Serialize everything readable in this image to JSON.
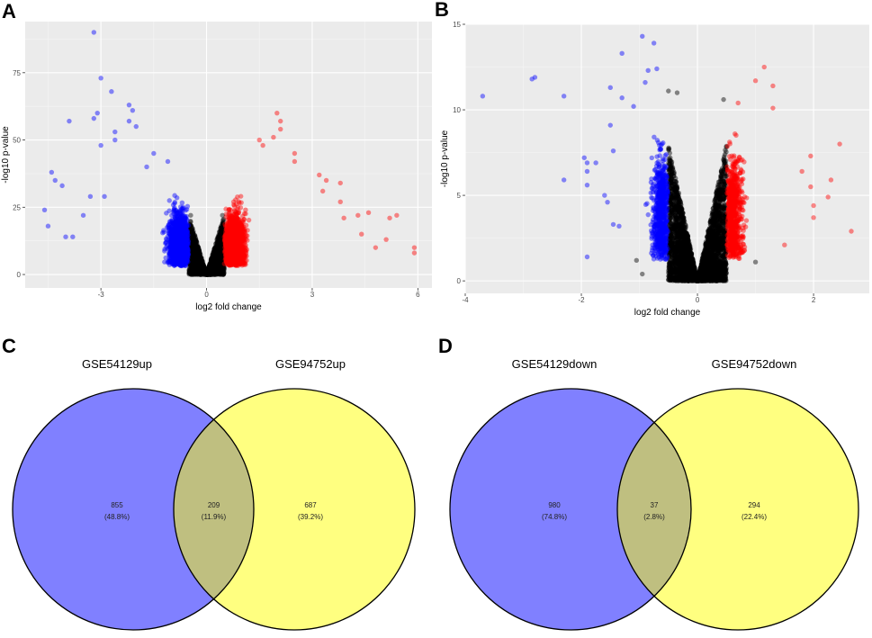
{
  "chart_data": [
    {
      "panel": "A",
      "type": "scatter",
      "xlabel": "log2 fold change",
      "ylabel": "-log10 p-value",
      "xlim": [
        -5.15,
        6.4
      ],
      "ylim": [
        -5,
        94
      ],
      "xticks": [
        -3,
        0,
        3,
        6
      ],
      "yticks": [
        0,
        25,
        50,
        75
      ],
      "grid": true,
      "background": "#ebebeb",
      "colors": {
        "down": "#0000ff",
        "not_significant": "#000000",
        "up": "#ff0000"
      },
      "fold_change_threshold": 0.5,
      "points_down": [
        [
          -3.2,
          90
        ],
        [
          -3.0,
          73
        ],
        [
          -2.7,
          68
        ],
        [
          -2.2,
          63
        ],
        [
          -2.1,
          61
        ],
        [
          -3.1,
          60
        ],
        [
          -3.2,
          58
        ],
        [
          -3.9,
          57
        ],
        [
          -2.2,
          57
        ],
        [
          -2.0,
          55
        ],
        [
          -2.6,
          53
        ],
        [
          -2.6,
          50
        ],
        [
          -3.0,
          48
        ],
        [
          -4.6,
          24
        ],
        [
          -4.4,
          38
        ],
        [
          -4.3,
          35
        ],
        [
          -4.1,
          33
        ],
        [
          -4.5,
          18
        ],
        [
          -4.0,
          14
        ],
        [
          -3.8,
          14
        ],
        [
          -3.5,
          22
        ],
        [
          -3.3,
          29
        ],
        [
          -2.9,
          29
        ],
        [
          -1.5,
          45
        ],
        [
          -1.7,
          40
        ],
        [
          -1.1,
          42
        ]
      ],
      "points_up": [
        [
          2.0,
          60
        ],
        [
          2.1,
          57
        ],
        [
          2.1,
          54
        ],
        [
          1.9,
          51
        ],
        [
          1.5,
          50
        ],
        [
          1.6,
          48
        ],
        [
          2.5,
          45
        ],
        [
          2.5,
          42
        ],
        [
          3.2,
          37
        ],
        [
          3.4,
          35
        ],
        [
          3.8,
          34
        ],
        [
          3.3,
          31
        ],
        [
          3.8,
          27
        ],
        [
          4.6,
          23
        ],
        [
          5.4,
          22
        ],
        [
          5.2,
          21
        ],
        [
          3.9,
          21
        ],
        [
          4.3,
          22
        ],
        [
          5.9,
          10
        ],
        [
          5.9,
          8
        ],
        [
          4.8,
          10
        ],
        [
          4.4,
          15
        ],
        [
          5.1,
          13
        ]
      ],
      "points_not_significant": [
        [
          -0.45,
          22
        ],
        [
          0.45,
          22
        ]
      ]
    },
    {
      "panel": "B",
      "type": "scatter",
      "xlabel": "log2 fold change",
      "ylabel": "-log10 p-value",
      "xlim": [
        -4,
        2.96
      ],
      "ylim": [
        -0.73,
        15
      ],
      "xticks": [
        -4,
        -2,
        0,
        2
      ],
      "yticks": [
        0,
        5,
        10,
        15
      ],
      "grid": true,
      "background": "#ebebeb",
      "colors": {
        "down": "#0000ff",
        "not_significant": "#000000",
        "up": "#ff0000"
      },
      "fold_change_threshold": 0.5,
      "points_down": [
        [
          -0.95,
          14.3
        ],
        [
          -0.75,
          13.9
        ],
        [
          -1.3,
          13.3
        ],
        [
          -0.7,
          12.4
        ],
        [
          -0.85,
          12.3
        ],
        [
          -2.85,
          11.8
        ],
        [
          -2.8,
          11.9
        ],
        [
          -3.7,
          10.8
        ],
        [
          -2.3,
          10.8
        ],
        [
          -1.5,
          11.3
        ],
        [
          -0.9,
          11.6
        ],
        [
          -1.3,
          10.7
        ],
        [
          -1.9,
          1.4
        ],
        [
          -2.3,
          5.9
        ],
        [
          -1.95,
          7.2
        ],
        [
          -1.9,
          6.9
        ],
        [
          -1.75,
          6.9
        ],
        [
          -1.9,
          6.4
        ],
        [
          -1.9,
          5.6
        ],
        [
          -1.6,
          5.0
        ],
        [
          -1.55,
          4.6
        ],
        [
          -1.45,
          7.6
        ],
        [
          -1.5,
          9.1
        ],
        [
          -1.45,
          3.3
        ],
        [
          -1.35,
          3.2
        ],
        [
          -1.1,
          10.2
        ]
      ],
      "points_up": [
        [
          1.15,
          12.5
        ],
        [
          1.0,
          11.7
        ],
        [
          1.3,
          11.4
        ],
        [
          2.45,
          8.0
        ],
        [
          2.3,
          5.9
        ],
        [
          2.65,
          2.9
        ],
        [
          2.25,
          4.9
        ],
        [
          2.0,
          4.4
        ],
        [
          1.95,
          7.3
        ],
        [
          1.95,
          5.5
        ],
        [
          1.8,
          6.4
        ],
        [
          2.0,
          3.7
        ],
        [
          1.5,
          2.1
        ],
        [
          1.3,
          10.1
        ],
        [
          0.7,
          10.4
        ]
      ],
      "points_not_significant": [
        [
          -0.95,
          0.4
        ],
        [
          -0.5,
          11.1
        ],
        [
          -0.35,
          11.0
        ],
        [
          0.45,
          10.6
        ],
        [
          -1.05,
          1.2
        ],
        [
          1.0,
          1.1
        ]
      ]
    },
    {
      "panel": "C",
      "type": "venn",
      "sets": [
        {
          "name": "GSE54129up",
          "color": "#8080ff"
        },
        {
          "name": "GSE94752up",
          "color": "#ffff80"
        }
      ],
      "overlap_color": "#bfbf80",
      "regions": [
        {
          "count": "855",
          "percent": "(48.8%)"
        },
        {
          "count": "209",
          "percent": "(11.9%)"
        },
        {
          "count": "687",
          "percent": "(39.2%)"
        }
      ]
    },
    {
      "panel": "D",
      "type": "venn",
      "sets": [
        {
          "name": "GSE54129down",
          "color": "#8080ff"
        },
        {
          "name": "GSE94752down",
          "color": "#ffff80"
        }
      ],
      "overlap_color": "#bfbf80",
      "regions": [
        {
          "count": "980",
          "percent": "(74.8%)"
        },
        {
          "count": "37",
          "percent": "(2.8%)"
        },
        {
          "count": "294",
          "percent": "(22.4%)"
        }
      ]
    }
  ]
}
